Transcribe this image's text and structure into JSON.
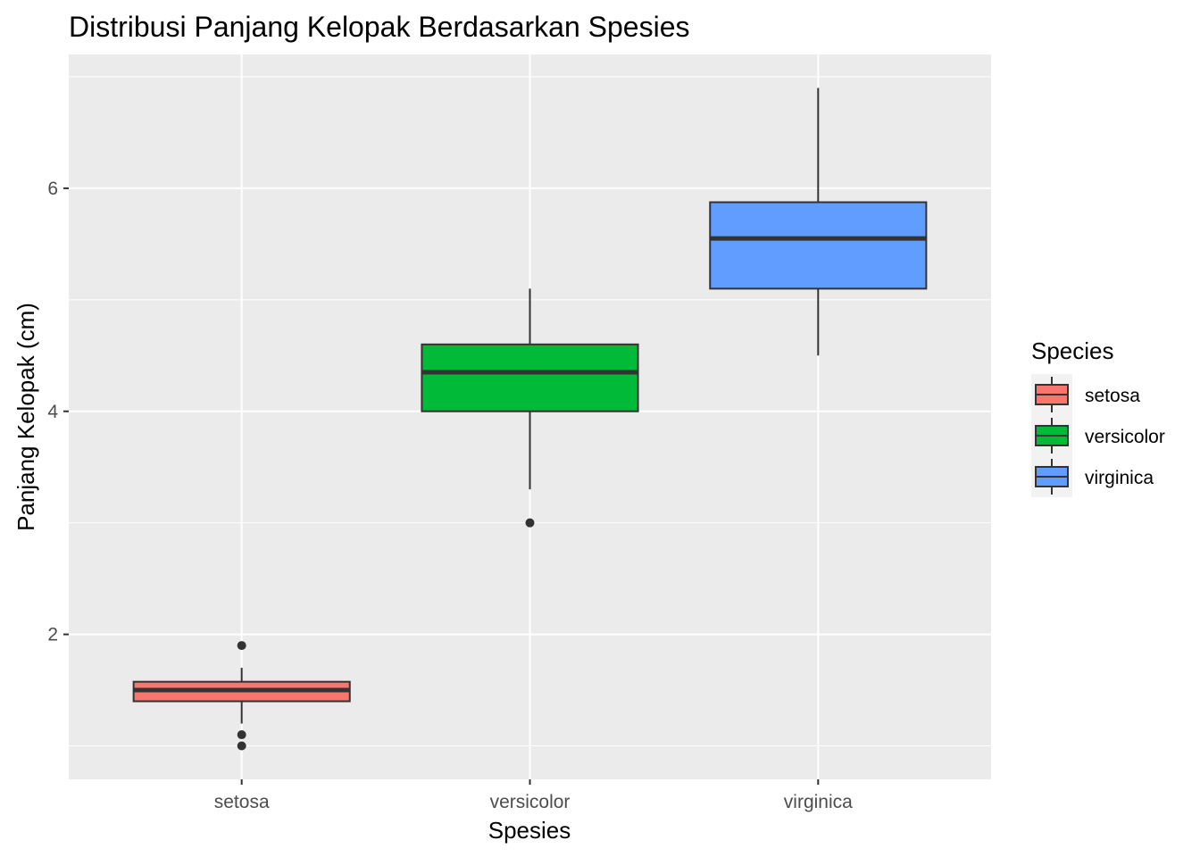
{
  "chart_data": {
    "type": "boxplot",
    "title": "Distribusi Panjang Kelopak Berdasarkan Spesies",
    "xlabel": "Spesies",
    "ylabel": "Panjang Kelopak (cm)",
    "ylim": [
      0.7,
      7.2
    ],
    "yticks": [
      "2",
      "4",
      "6"
    ],
    "grid": true,
    "legend": {
      "title": "Species",
      "position": "right"
    },
    "categories": [
      "setosa",
      "versicolor",
      "virginica"
    ],
    "boxes": [
      {
        "category": "setosa",
        "color": "#F8766D",
        "whisker_low": 1.2,
        "q1": 1.4,
        "median": 1.5,
        "q3": 1.575,
        "whisker_high": 1.7,
        "outliers": [
          1.9,
          1.1,
          1.0
        ]
      },
      {
        "category": "versicolor",
        "color": "#00BA38",
        "whisker_low": 3.3,
        "q1": 4.0,
        "median": 4.35,
        "q3": 4.6,
        "whisker_high": 5.1,
        "outliers": [
          3.0
        ]
      },
      {
        "category": "virginica",
        "color": "#619CFF",
        "whisker_low": 4.5,
        "q1": 5.1,
        "median": 5.55,
        "q3": 5.875,
        "whisker_high": 6.9,
        "outliers": []
      }
    ]
  }
}
